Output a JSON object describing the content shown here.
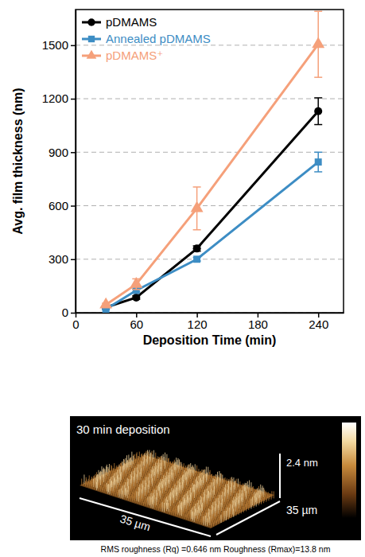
{
  "chart_data": {
    "type": "line",
    "x_label": "Deposition Time (min)",
    "y_label": "Avg. film thickness (nm)",
    "x": [
      30,
      60,
      120,
      240
    ],
    "series": [
      {
        "name": "pDMAMS",
        "color": "#000000",
        "marker": "circle",
        "values": [
          30,
          85,
          360,
          1130
        ],
        "errors": [
          5,
          10,
          15,
          75
        ]
      },
      {
        "name": "Annealed pDMAMS",
        "color": "#3d8dc4",
        "marker": "square",
        "values": [
          20,
          125,
          300,
          845
        ],
        "errors": [
          3,
          8,
          10,
          55
        ]
      },
      {
        "name": "pDMAMS⁺",
        "color": "#f5a07a",
        "marker": "triangle",
        "values": [
          45,
          160,
          585,
          1505
        ],
        "errors": [
          8,
          30,
          120,
          185
        ]
      }
    ],
    "xlim": [
      0,
      265
    ],
    "xticks": [
      0,
      60,
      120,
      180,
      240
    ],
    "ylim": [
      0,
      1700
    ],
    "yticks": [
      0,
      300,
      600,
      900,
      1200,
      1500
    ],
    "grid": "y",
    "legend": "upper left"
  },
  "afm_image": {
    "title": "30 min deposition",
    "z_label": "2.4 nm",
    "x_label": "35 µm",
    "y_label": "35 µm",
    "caption": "RMS roughness (Rq) =0.646 nm Roughness (Rmax)=13.8 nm"
  }
}
